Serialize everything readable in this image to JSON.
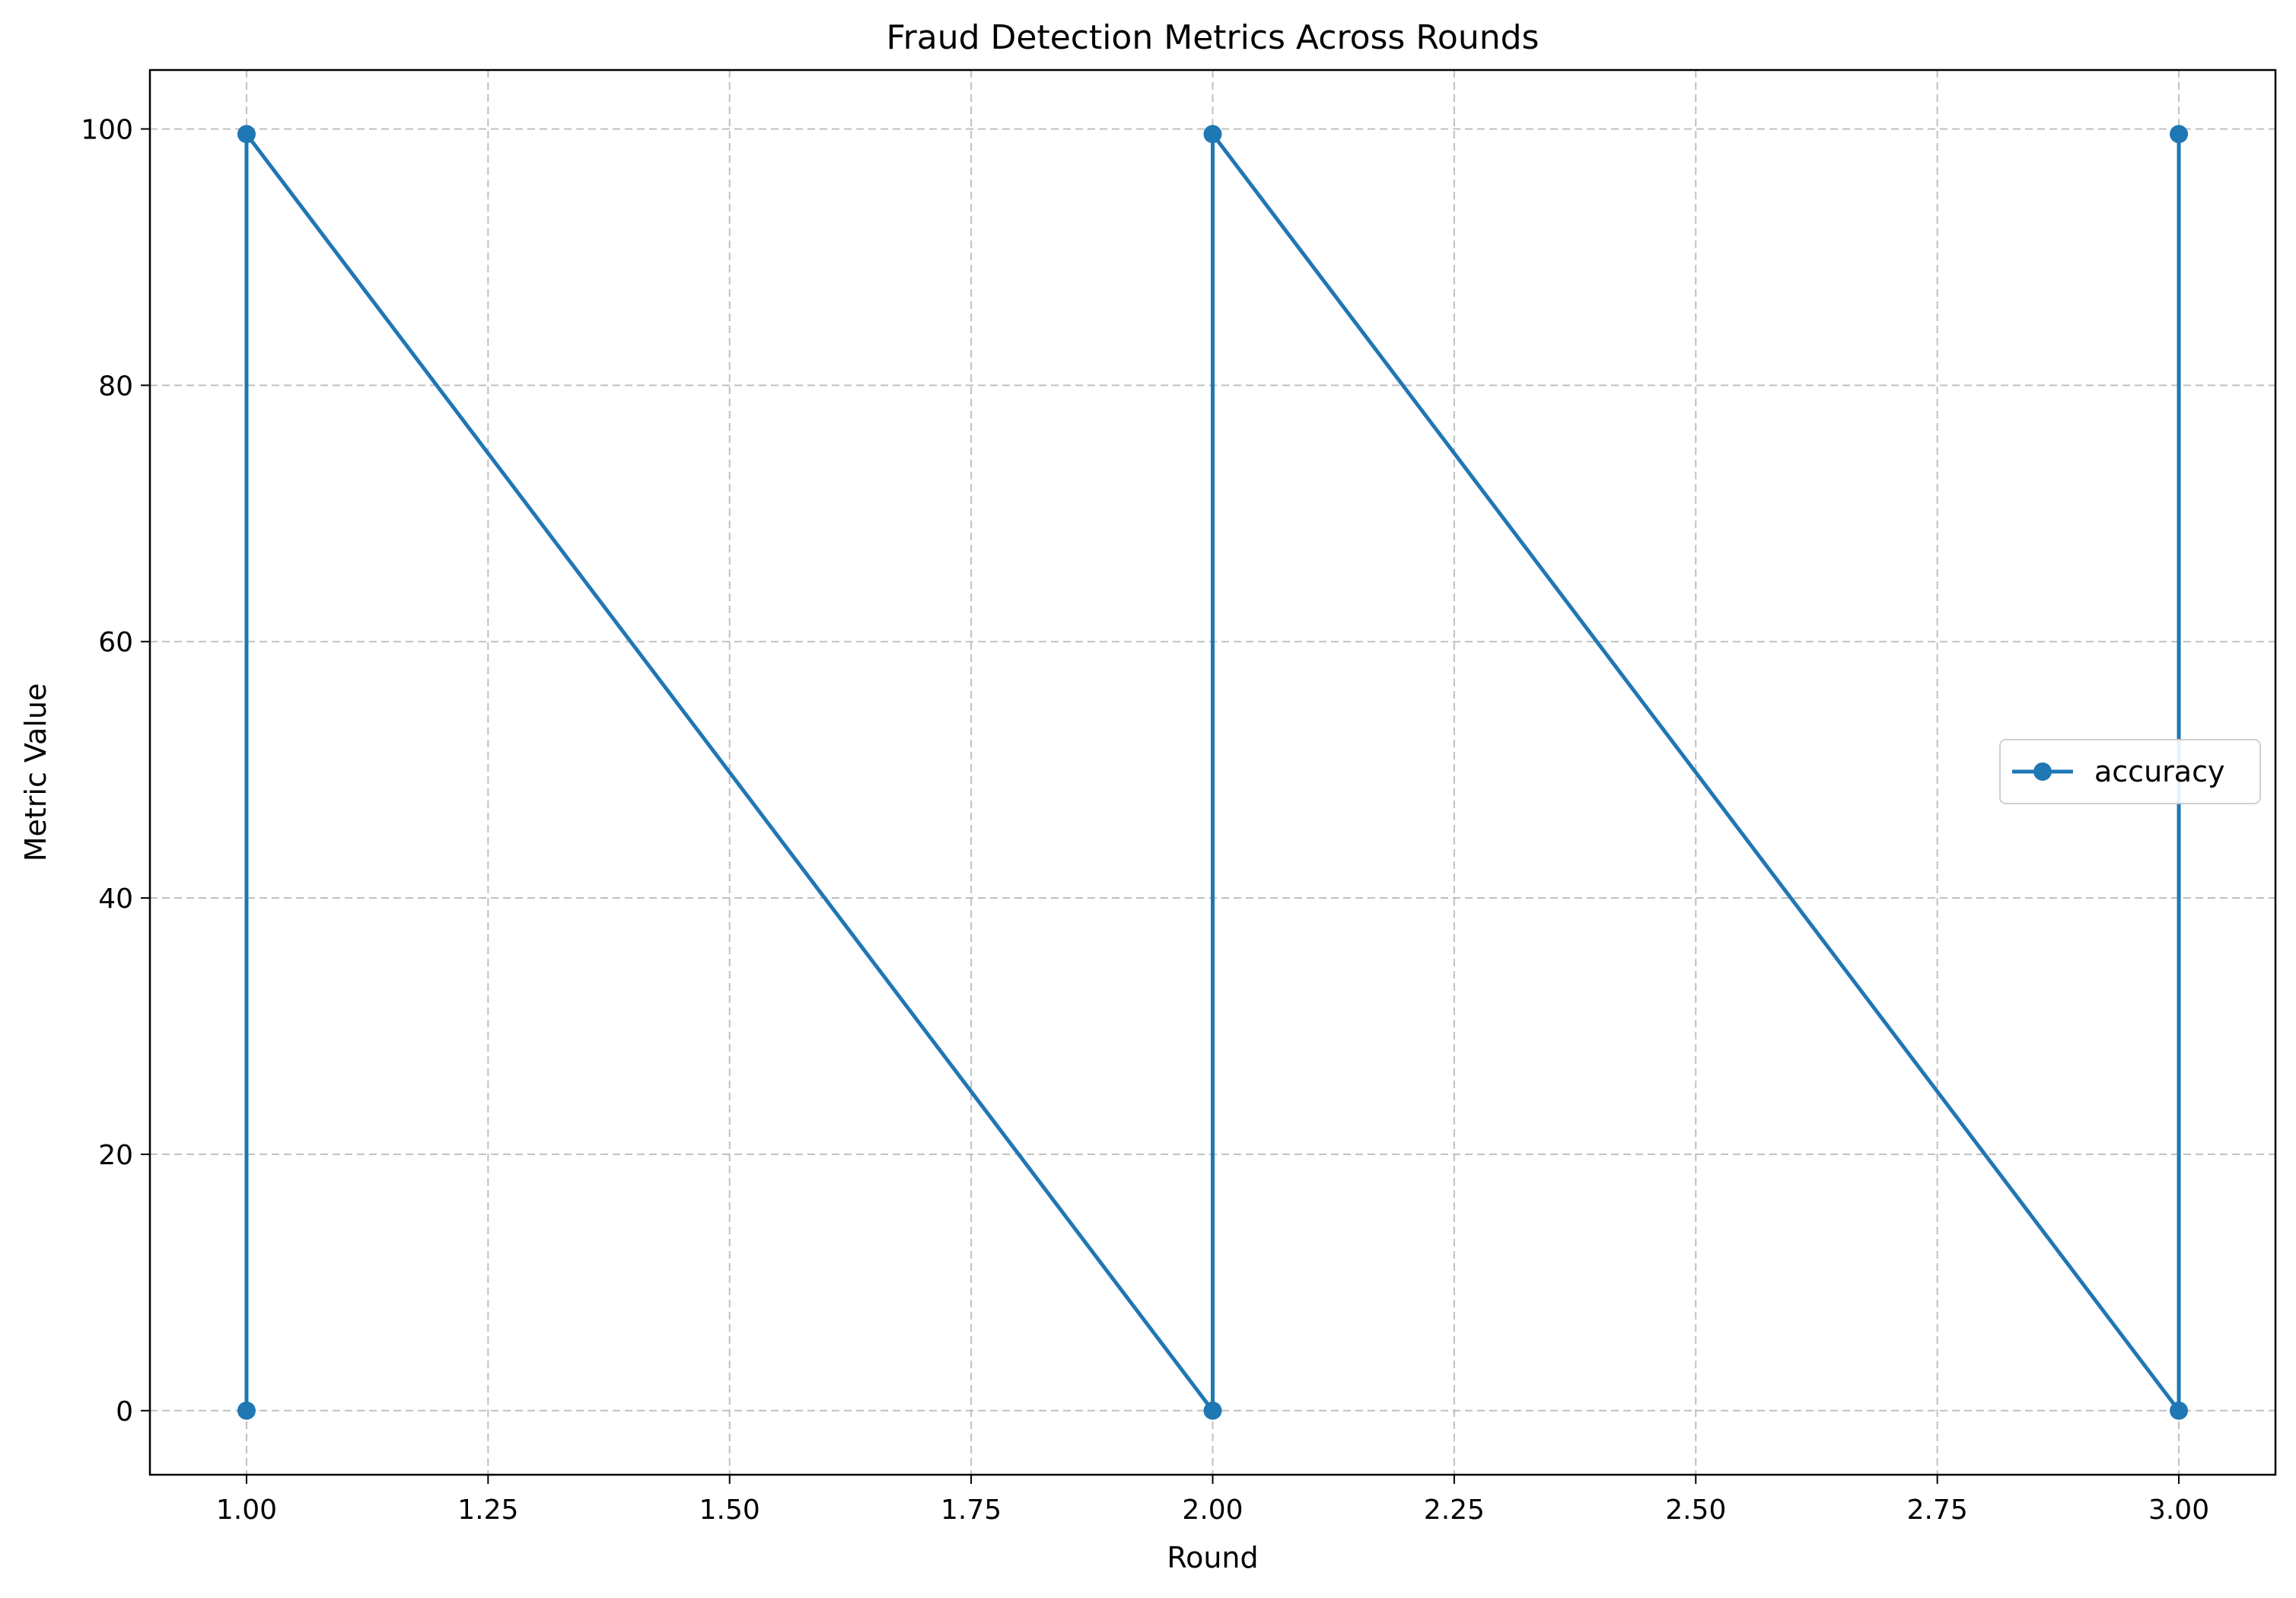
{
  "chart_data": {
    "type": "line",
    "title": "Fraud Detection Metrics Across Rounds",
    "xlabel": "Round",
    "ylabel": "Metric Value",
    "xlim": [
      0.9,
      3.1
    ],
    "ylim": [
      -5,
      104.6
    ],
    "x_ticks": [
      1.0,
      1.25,
      1.5,
      1.75,
      2.0,
      2.25,
      2.5,
      2.75,
      3.0
    ],
    "x_tick_labels": [
      "1.00",
      "1.25",
      "1.50",
      "1.75",
      "2.00",
      "2.25",
      "2.50",
      "2.75",
      "3.00"
    ],
    "y_ticks": [
      0,
      20,
      40,
      60,
      80,
      100
    ],
    "y_tick_labels": [
      "0",
      "20",
      "40",
      "60",
      "80",
      "100"
    ],
    "grid": true,
    "legend_position": "center-right",
    "series": [
      {
        "name": "accuracy",
        "color": "#1f77b4",
        "marker": "circle",
        "points": [
          {
            "x": 1,
            "y": 0
          },
          {
            "x": 1,
            "y": 99.6
          },
          {
            "x": 2,
            "y": 0
          },
          {
            "x": 2,
            "y": 99.6
          },
          {
            "x": 3,
            "y": 0
          },
          {
            "x": 3,
            "y": 99.6
          }
        ]
      }
    ]
  }
}
